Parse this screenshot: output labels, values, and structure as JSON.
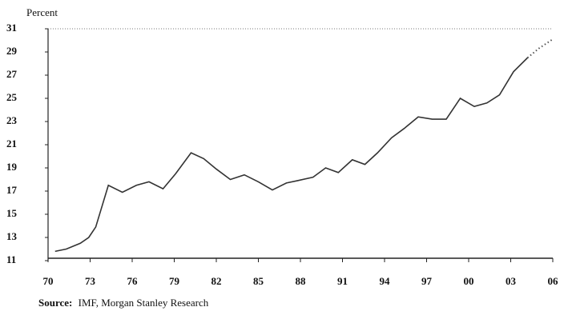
{
  "chart_data": {
    "type": "line",
    "y_axis_label": "Percent",
    "source_label": "Source:",
    "source": "IMF, Morgan Stanley Research",
    "xlim": [
      1970,
      2006
    ],
    "xticks": [
      {
        "value": 1970,
        "label": "70"
      },
      {
        "value": 1973,
        "label": "73"
      },
      {
        "value": 1976,
        "label": "76"
      },
      {
        "value": 1979,
        "label": "79"
      },
      {
        "value": 1982,
        "label": "82"
      },
      {
        "value": 1985,
        "label": "85"
      },
      {
        "value": 1988,
        "label": "88"
      },
      {
        "value": 1991,
        "label": "91"
      },
      {
        "value": 1994,
        "label": "94"
      },
      {
        "value": 1997,
        "label": "97"
      },
      {
        "value": 2000,
        "label": "00"
      },
      {
        "value": 2003,
        "label": "03"
      },
      {
        "value": 2006,
        "label": "06"
      }
    ],
    "ylim": [
      11,
      31
    ],
    "yticks": [
      11,
      13,
      15,
      17,
      19,
      21,
      23,
      25,
      27,
      29,
      31
    ],
    "series": [
      {
        "color": "#333333",
        "style": "solid",
        "x": [
          1970.5,
          1971.3,
          1972.3,
          1972.9,
          1973.4,
          1974.3,
          1975.3,
          1976.3,
          1977.2,
          1978.2,
          1979.1,
          1980.2,
          1981.1,
          1982.0,
          1983.0,
          1984.0,
          1985.0,
          1986.0,
          1987.0,
          1987.8,
          1988.9,
          1989.8,
          1990.7,
          1991.7,
          1992.6,
          1993.5,
          1994.5,
          1995.4,
          1996.4,
          1997.4,
          1998.4,
          1999.4,
          2000.4,
          2001.3,
          2002.2,
          2003.2,
          2004.2
        ],
        "values": [
          11.8,
          12.0,
          12.5,
          13.0,
          13.9,
          17.5,
          16.9,
          17.5,
          17.8,
          17.2,
          18.5,
          20.3,
          19.8,
          18.9,
          18.0,
          18.4,
          17.8,
          17.1,
          17.7,
          17.9,
          18.2,
          19.0,
          18.6,
          19.7,
          19.3,
          20.3,
          21.6,
          22.4,
          23.4,
          23.2,
          23.2,
          25.0,
          24.3,
          24.6,
          25.3,
          27.3,
          28.5
        ]
      },
      {
        "color": "#555555",
        "style": "dotted",
        "x": [
          2004.2,
          2005.0,
          2006.0
        ],
        "values": [
          28.5,
          29.3,
          30.1
        ]
      }
    ]
  }
}
